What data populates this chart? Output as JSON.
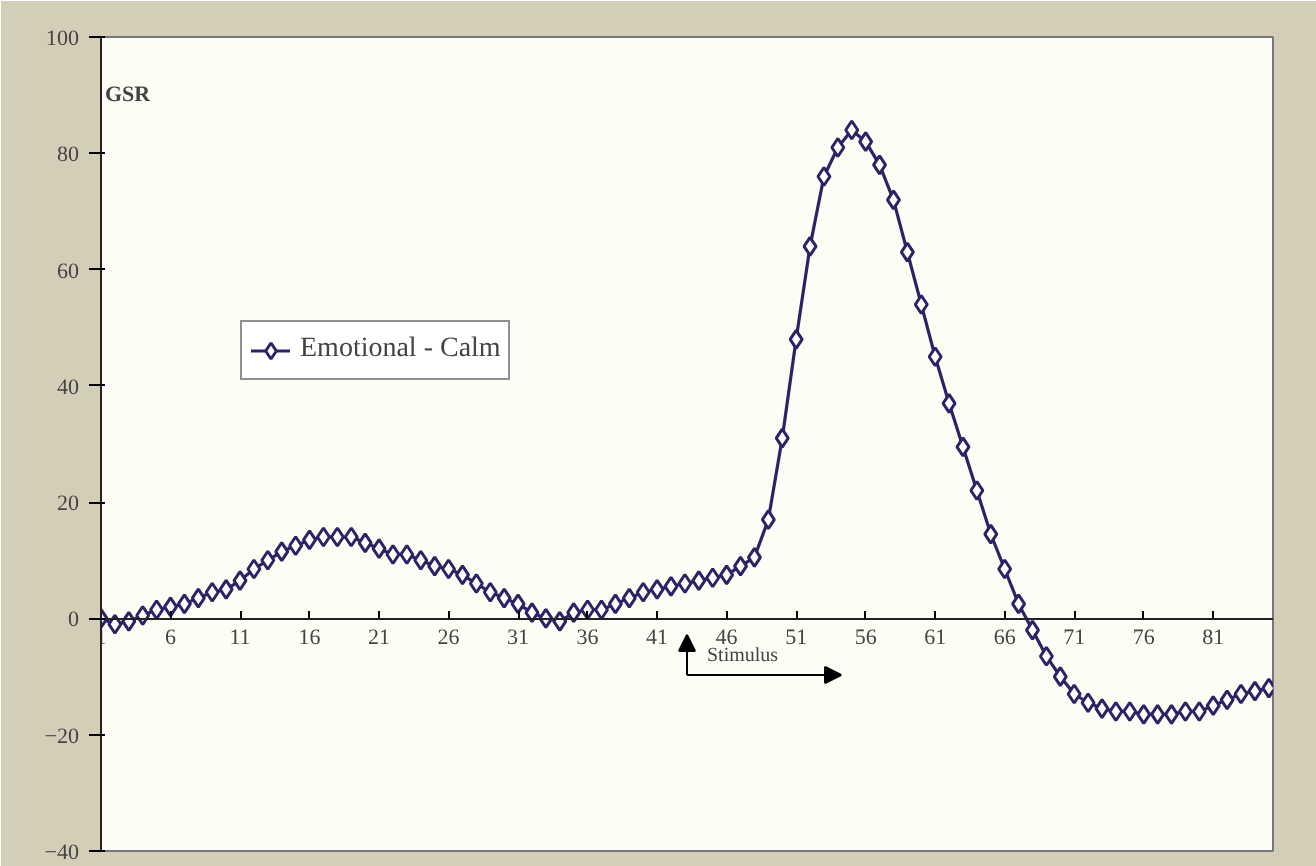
{
  "chart_data": {
    "type": "line",
    "ylabel": "GSR",
    "x": [
      1,
      2,
      3,
      4,
      5,
      6,
      7,
      8,
      9,
      10,
      11,
      12,
      13,
      14,
      15,
      16,
      17,
      18,
      19,
      20,
      21,
      22,
      23,
      24,
      25,
      26,
      27,
      28,
      29,
      30,
      31,
      32,
      33,
      34,
      35,
      36,
      37,
      38,
      39,
      40,
      41,
      42,
      43,
      44,
      45,
      46,
      47,
      48,
      49,
      50,
      51,
      52,
      53,
      54,
      55,
      56,
      57,
      58,
      59,
      60,
      61,
      62,
      63,
      64,
      65,
      66,
      67,
      68,
      69,
      70,
      71,
      72,
      73,
      74,
      75,
      76,
      77,
      78,
      79,
      80,
      81,
      82,
      83,
      84,
      85
    ],
    "series": [
      {
        "name": "Emotional - Calm",
        "color": "#2e2266",
        "values": [
          0,
          -1,
          -0.5,
          0.5,
          1.5,
          2,
          2.5,
          3.5,
          4.5,
          5,
          6.5,
          8.5,
          10,
          11.5,
          12.5,
          13.5,
          14,
          14,
          14,
          13,
          12,
          11,
          11,
          10,
          9,
          8.5,
          7.5,
          6,
          4.5,
          3.5,
          2.5,
          1,
          0,
          -0.5,
          1,
          1.5,
          1.5,
          2.5,
          3.5,
          4.5,
          5,
          5.5,
          6,
          6.5,
          7,
          7.5,
          9,
          10.5,
          17,
          31,
          48,
          64,
          76,
          81,
          84,
          82,
          78,
          72,
          63,
          54,
          45,
          37,
          29.5,
          22,
          14.5,
          8.5,
          2.5,
          -2,
          -6.5,
          -10,
          -13,
          -14.5,
          -15.5,
          -16,
          -16,
          -16.5,
          -16.5,
          -16.5,
          -16,
          -16,
          -15,
          -14,
          -13,
          -12.5,
          -12
        ]
      }
    ],
    "xlim": [
      1,
      85.3
    ],
    "xticks": [
      1,
      6,
      11,
      16,
      21,
      26,
      31,
      36,
      41,
      46,
      51,
      56,
      61,
      66,
      71,
      76,
      81
    ],
    "ylim": [
      -40,
      100
    ],
    "yticks": [
      -40,
      -20,
      0,
      20,
      40,
      60,
      80,
      100
    ],
    "annotations": [
      "Stimulus"
    ],
    "grid": false,
    "legend": "top left",
    "marker": "diamond",
    "line_style": "solid"
  }
}
